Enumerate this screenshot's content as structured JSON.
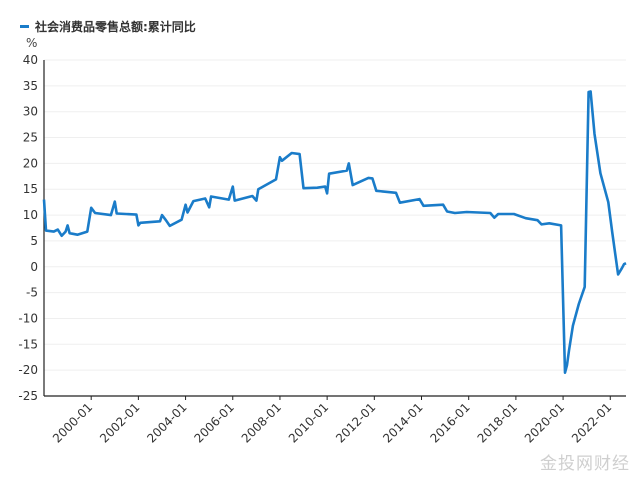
{
  "chart_data": {
    "type": "line",
    "title": "",
    "ylabel": "%",
    "xlabel": "",
    "ylim": [
      -25,
      40
    ],
    "yticks": [
      40,
      35,
      30,
      25,
      20,
      15,
      10,
      5,
      0,
      -5,
      -10,
      -15,
      -20,
      -25
    ],
    "xlim": [
      "1998-01",
      "2022-09"
    ],
    "xticks": [
      "2000-01",
      "2002-01",
      "2004-01",
      "2006-01",
      "2008-01",
      "2010-01",
      "2012-01",
      "2014-01",
      "2016-01",
      "2018-01",
      "2020-01",
      "2022-01"
    ],
    "grid": "horizontal",
    "legend_position": "top-left",
    "series": [
      {
        "name": "社会消费品零售总额:累计同比",
        "color": "#1a7cc9",
        "points": [
          [
            "1998-01",
            13.0
          ],
          [
            "1998-02",
            7.0
          ],
          [
            "1998-06",
            6.8
          ],
          [
            "1998-08",
            7.2
          ],
          [
            "1998-10",
            6.0
          ],
          [
            "1998-12",
            6.8
          ],
          [
            "1999-01",
            8.0
          ],
          [
            "1999-02",
            6.5
          ],
          [
            "1999-06",
            6.2
          ],
          [
            "1999-11",
            6.8
          ],
          [
            "2000-01",
            11.4
          ],
          [
            "2000-03",
            10.4
          ],
          [
            "2000-11",
            10.0
          ],
          [
            "2001-01",
            12.6
          ],
          [
            "2001-02",
            10.3
          ],
          [
            "2001-12",
            10.1
          ],
          [
            "2002-01",
            8.0
          ],
          [
            "2002-02",
            8.5
          ],
          [
            "2002-12",
            8.8
          ],
          [
            "2003-01",
            10.0
          ],
          [
            "2003-03",
            9.0
          ],
          [
            "2003-05",
            7.9
          ],
          [
            "2003-11",
            9.1
          ],
          [
            "2004-01",
            12.0
          ],
          [
            "2004-02",
            10.5
          ],
          [
            "2004-05",
            12.7
          ],
          [
            "2004-11",
            13.2
          ],
          [
            "2005-01",
            11.5
          ],
          [
            "2005-02",
            13.6
          ],
          [
            "2005-11",
            13.0
          ],
          [
            "2006-01",
            15.5
          ],
          [
            "2006-02",
            12.8
          ],
          [
            "2006-11",
            13.7
          ],
          [
            "2007-01",
            12.8
          ],
          [
            "2007-02",
            15.0
          ],
          [
            "2007-11",
            16.9
          ],
          [
            "2008-01",
            21.2
          ],
          [
            "2008-02",
            20.5
          ],
          [
            "2008-07",
            22.0
          ],
          [
            "2008-11",
            21.8
          ],
          [
            "2009-01",
            15.2
          ],
          [
            "2009-08",
            15.3
          ],
          [
            "2009-12",
            15.5
          ],
          [
            "2010-01",
            14.2
          ],
          [
            "2010-02",
            18.0
          ],
          [
            "2010-11",
            18.6
          ],
          [
            "2010-12",
            20.0
          ],
          [
            "2011-02",
            15.8
          ],
          [
            "2011-10",
            17.2
          ],
          [
            "2011-12",
            17.1
          ],
          [
            "2012-02",
            14.7
          ],
          [
            "2012-12",
            14.3
          ],
          [
            "2013-02",
            12.4
          ],
          [
            "2013-12",
            13.1
          ],
          [
            "2014-02",
            11.8
          ],
          [
            "2014-12",
            12.0
          ],
          [
            "2015-02",
            10.7
          ],
          [
            "2015-06",
            10.4
          ],
          [
            "2015-12",
            10.6
          ],
          [
            "2016-12",
            10.4
          ],
          [
            "2017-02",
            9.5
          ],
          [
            "2017-04",
            10.2
          ],
          [
            "2017-12",
            10.2
          ],
          [
            "2018-06",
            9.4
          ],
          [
            "2018-12",
            9.0
          ],
          [
            "2019-02",
            8.2
          ],
          [
            "2019-06",
            8.4
          ],
          [
            "2019-12",
            8.0
          ],
          [
            "2020-02",
            -20.5
          ],
          [
            "2020-03",
            -19.0
          ],
          [
            "2020-04",
            -16.2
          ],
          [
            "2020-06",
            -11.4
          ],
          [
            "2020-09",
            -7.2
          ],
          [
            "2020-12",
            -3.9
          ],
          [
            "2021-02",
            33.8
          ],
          [
            "2021-03",
            33.9
          ],
          [
            "2021-05",
            25.7
          ],
          [
            "2021-08",
            18.1
          ],
          [
            "2021-12",
            12.5
          ],
          [
            "2022-02",
            6.7
          ],
          [
            "2022-05",
            -1.5
          ],
          [
            "2022-07",
            -0.2
          ],
          [
            "2022-08",
            0.5
          ],
          [
            "2022-09",
            0.7
          ]
        ]
      }
    ]
  },
  "watermark": "金投网财经"
}
